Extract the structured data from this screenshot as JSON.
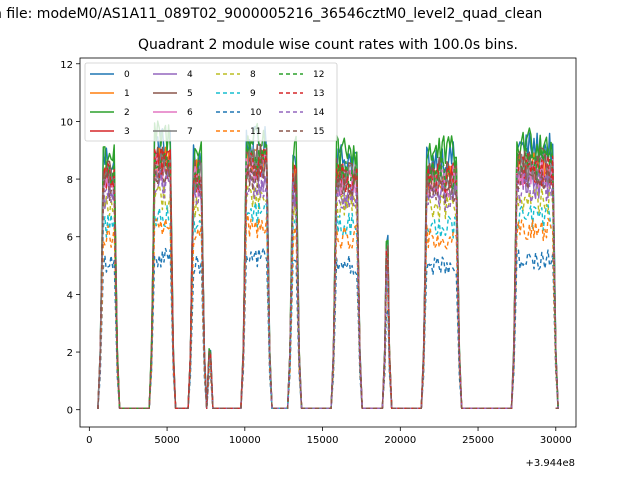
{
  "chart_data": {
    "type": "line",
    "suptitle": "n file: modeM0/AS1A11_089T02_9000005216_36546cztM0_level2_quad_clean",
    "title": "Quadrant 2 module wise count rates with 100.0s bins.",
    "xlabel": "",
    "ylabel": "",
    "x_offset_label": "+3.944e8",
    "xlim": [
      -600,
      31300
    ],
    "ylim": [
      -0.6,
      12.2
    ],
    "x_ticks": [
      0,
      5000,
      10000,
      15000,
      20000,
      25000,
      30000
    ],
    "x_tick_labels": [
      "0",
      "5000",
      "10000",
      "15000",
      "20000",
      "25000",
      "30000"
    ],
    "y_ticks": [
      0,
      2,
      4,
      6,
      8,
      10,
      12
    ],
    "y_tick_labels": [
      "0",
      "2",
      "4",
      "6",
      "8",
      "10",
      "12"
    ],
    "legend_position": "top-left",
    "segments": [
      {
        "start": 700,
        "end": 1800
      },
      {
        "start": 4000,
        "end": 5400
      },
      {
        "start": 6500,
        "end": 7400
      },
      {
        "start": 7700,
        "end": 7800
      },
      {
        "start": 9900,
        "end": 11600
      },
      {
        "start": 12900,
        "end": 13500
      },
      {
        "start": 15700,
        "end": 17400
      },
      {
        "start": 19000,
        "end": 19300
      },
      {
        "start": 21500,
        "end": 23800
      },
      {
        "start": 27300,
        "end": 30000
      }
    ],
    "off_level": 0.05,
    "series": [
      {
        "name": "0",
        "color": "#1f77b4",
        "dash": "",
        "level": 8.7
      },
      {
        "name": "1",
        "color": "#ff7f0e",
        "dash": "",
        "level": 8.1
      },
      {
        "name": "2",
        "color": "#2ca02c",
        "dash": "",
        "level": 8.9
      },
      {
        "name": "3",
        "color": "#d62728",
        "dash": "",
        "level": 8.0
      },
      {
        "name": "4",
        "color": "#9467bd",
        "dash": "",
        "level": 7.5
      },
      {
        "name": "5",
        "color": "#8c564b",
        "dash": "",
        "level": 8.2
      },
      {
        "name": "6",
        "color": "#e377c2",
        "dash": "",
        "level": 7.9
      },
      {
        "name": "7",
        "color": "#7f7f7f",
        "dash": "",
        "level": 8.0
      },
      {
        "name": "8",
        "color": "#bcbd22",
        "dash": "4,3",
        "level": 7.0
      },
      {
        "name": "9",
        "color": "#17becf",
        "dash": "4,3",
        "level": 6.4
      },
      {
        "name": "10",
        "color": "#1f77b4",
        "dash": "4,3",
        "level": 5.0
      },
      {
        "name": "11",
        "color": "#ff7f0e",
        "dash": "4,3",
        "level": 6.0
      },
      {
        "name": "12",
        "color": "#2ca02c",
        "dash": "4,3",
        "level": 8.2
      },
      {
        "name": "13",
        "color": "#d62728",
        "dash": "4,3",
        "level": 8.0
      },
      {
        "name": "14",
        "color": "#9467bd",
        "dash": "4,3",
        "level": 7.4
      },
      {
        "name": "15",
        "color": "#8c564b",
        "dash": "4,3",
        "level": 7.7
      }
    ]
  }
}
